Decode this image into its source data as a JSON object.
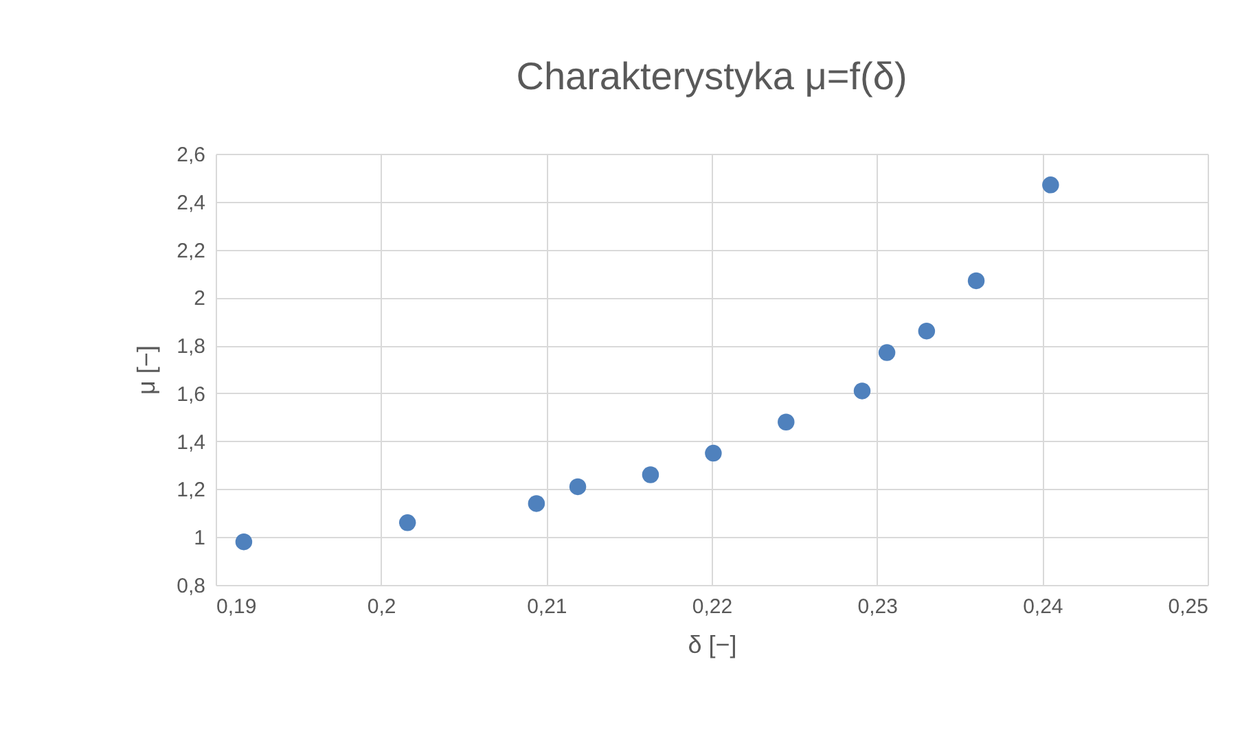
{
  "chart_data": {
    "type": "scatter",
    "title": "Charakterystyka μ=f(δ)",
    "xlabel": "δ [−]",
    "ylabel": "μ [−]",
    "x": [
      0.1917,
      0.2016,
      0.2094,
      0.2119,
      0.2163,
      0.2201,
      0.2245,
      0.2291,
      0.2306,
      0.233,
      0.236,
      0.2405
    ],
    "series": [
      {
        "color": "#4f81bd",
        "values": [
          0.98,
          1.06,
          1.14,
          1.21,
          1.26,
          1.35,
          1.48,
          1.61,
          1.77,
          1.86,
          2.07,
          2.47
        ]
      }
    ],
    "xlim": [
      0.19,
      0.25
    ],
    "xticks": [
      {
        "value": 0.19,
        "label": "0,19"
      },
      {
        "value": 0.2,
        "label": "0,2"
      },
      {
        "value": 0.21,
        "label": "0,21"
      },
      {
        "value": 0.22,
        "label": "0,22"
      },
      {
        "value": 0.23,
        "label": "0,23"
      },
      {
        "value": 0.24,
        "label": "0,24"
      },
      {
        "value": 0.25,
        "label": "0,25"
      }
    ],
    "ylim": [
      0.8,
      2.6
    ],
    "yticks": [
      {
        "value": 0.8,
        "label": "0,8"
      },
      {
        "value": 1,
        "label": "1"
      },
      {
        "value": 1.2,
        "label": "1,2"
      },
      {
        "value": 1.4,
        "label": "1,4"
      },
      {
        "value": 1.6,
        "label": "1,6"
      },
      {
        "value": 1.8,
        "label": "1,8"
      },
      {
        "value": 2,
        "label": "2"
      },
      {
        "value": 2.2,
        "label": "2,2"
      },
      {
        "value": 2.4,
        "label": "2,4"
      },
      {
        "value": 2.6,
        "label": "2,6"
      }
    ],
    "grid": true,
    "marker": "circle"
  }
}
